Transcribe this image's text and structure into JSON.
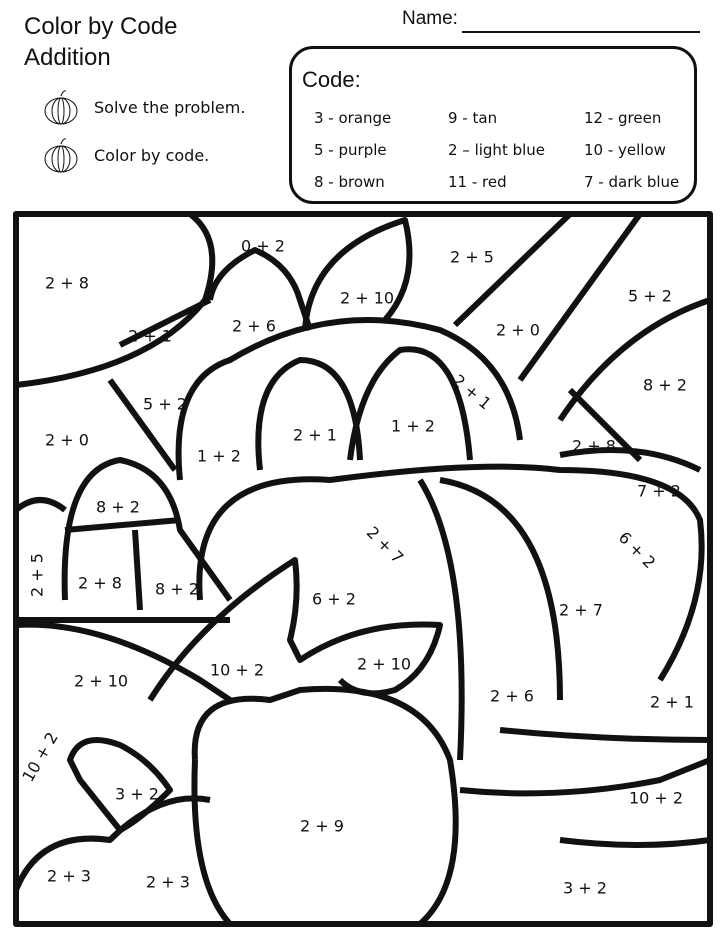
{
  "header": {
    "title_line1": "Color by Code",
    "title_line2": "Addition",
    "name_label": "Name:"
  },
  "instructions": [
    {
      "text": "Solve the problem.",
      "icon": "pumpkin-icon"
    },
    {
      "text": "Color by code.",
      "icon": "pumpkin-icon"
    }
  ],
  "code": {
    "title": "Code:",
    "items": [
      "3 - orange",
      "5 - purple",
      "8 - brown",
      "9 - tan",
      "2 – light blue",
      "11  - red",
      "12 - green",
      "10 - yellow",
      "7 - dark blue"
    ]
  },
  "problems": [
    "2 + 8",
    "0 + 2",
    "2 + 5",
    "5 + 2",
    "2 + 10",
    "2 + 6",
    "2 + 1",
    "2 + 0",
    "8 + 2",
    "2 + 1",
    "5 + 2",
    "1 + 2",
    "2 + 1",
    "2 + 0",
    "1 + 2",
    "2 + 8",
    "7 + 2",
    "8 + 2",
    "2 + 7",
    "6 + 2",
    "2 + 5",
    "2 + 8",
    "8 + 2",
    "6 + 2",
    "2 + 7",
    "2 + 10",
    "10 + 2",
    "2 + 10",
    "2 + 6",
    "2 + 1",
    "10 + 2",
    "3 + 2",
    "10 + 2",
    "2 + 9",
    "2 + 3",
    "2 + 3",
    "3 + 2"
  ]
}
